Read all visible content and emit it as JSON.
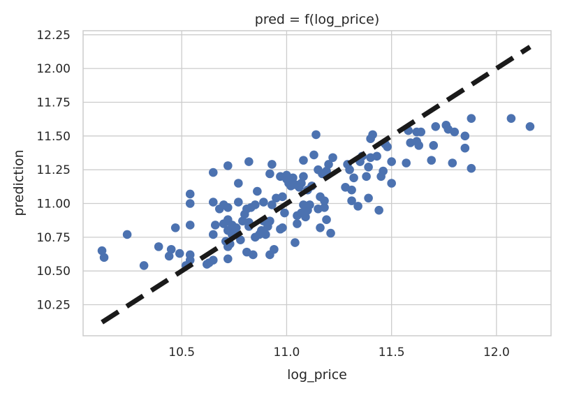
{
  "chart_data": {
    "type": "scatter",
    "title": "pred = f(log_price)",
    "xlabel": "log_price",
    "ylabel": "prediction",
    "xlim": [
      10.03,
      12.26
    ],
    "ylim": [
      10.02,
      12.28
    ],
    "xticks": [
      10.5,
      11.0,
      11.5,
      12.0
    ],
    "xtick_labels": [
      "10.5",
      "11.0",
      "11.5",
      "12.0"
    ],
    "yticks": [
      10.25,
      10.5,
      10.75,
      11.0,
      11.25,
      11.5,
      11.75,
      12.0,
      12.25
    ],
    "ytick_labels": [
      "10.25",
      "10.50",
      "10.75",
      "11.00",
      "11.25",
      "11.50",
      "11.75",
      "12.00",
      "12.25"
    ],
    "grid": true,
    "point_color": "#4c72b0",
    "line_color": "#1a1a1a",
    "reference_line": {
      "x": [
        10.12,
        12.16
      ],
      "y": [
        10.12,
        12.16
      ]
    },
    "points": [
      [
        10.12,
        10.65
      ],
      [
        10.13,
        10.6
      ],
      [
        10.24,
        10.77
      ],
      [
        10.32,
        10.54
      ],
      [
        10.39,
        10.68
      ],
      [
        10.44,
        10.61
      ],
      [
        10.45,
        10.66
      ],
      [
        10.47,
        10.82
      ],
      [
        10.49,
        10.63
      ],
      [
        10.52,
        10.54
      ],
      [
        10.54,
        10.62
      ],
      [
        10.54,
        10.58
      ],
      [
        10.54,
        10.84
      ],
      [
        10.54,
        11.0
      ],
      [
        10.54,
        11.07
      ],
      [
        10.62,
        10.55
      ],
      [
        10.63,
        10.56
      ],
      [
        10.65,
        10.58
      ],
      [
        10.65,
        10.77
      ],
      [
        10.65,
        11.01
      ],
      [
        10.65,
        11.23
      ],
      [
        10.66,
        10.84
      ],
      [
        10.68,
        10.96
      ],
      [
        10.7,
        10.85
      ],
      [
        10.7,
        10.99
      ],
      [
        10.71,
        10.72
      ],
      [
        10.72,
        10.68
      ],
      [
        10.72,
        10.59
      ],
      [
        10.72,
        10.8
      ],
      [
        10.72,
        10.88
      ],
      [
        10.72,
        10.97
      ],
      [
        10.72,
        11.28
      ],
      [
        10.73,
        10.7
      ],
      [
        10.74,
        10.77
      ],
      [
        10.74,
        10.84
      ],
      [
        10.75,
        10.78
      ],
      [
        10.76,
        10.82
      ],
      [
        10.77,
        11.01
      ],
      [
        10.77,
        11.15
      ],
      [
        10.78,
        10.73
      ],
      [
        10.79,
        10.87
      ],
      [
        10.8,
        10.92
      ],
      [
        10.81,
        10.96
      ],
      [
        10.81,
        10.64
      ],
      [
        10.82,
        10.86
      ],
      [
        10.82,
        10.83
      ],
      [
        10.82,
        11.31
      ],
      [
        10.83,
        10.97
      ],
      [
        10.84,
        10.62
      ],
      [
        10.85,
        10.75
      ],
      [
        10.85,
        10.99
      ],
      [
        10.86,
        11.09
      ],
      [
        10.87,
        10.77
      ],
      [
        10.88,
        10.8
      ],
      [
        10.89,
        10.87
      ],
      [
        10.89,
        11.01
      ],
      [
        10.9,
        10.77
      ],
      [
        10.91,
        10.83
      ],
      [
        10.92,
        10.87
      ],
      [
        10.92,
        10.62
      ],
      [
        10.92,
        11.22
      ],
      [
        10.93,
        10.99
      ],
      [
        10.93,
        11.29
      ],
      [
        10.94,
        10.66
      ],
      [
        10.95,
        11.04
      ],
      [
        10.97,
        11.2
      ],
      [
        10.97,
        10.81
      ],
      [
        10.98,
        11.05
      ],
      [
        10.98,
        10.82
      ],
      [
        10.99,
        10.93
      ],
      [
        11.0,
        11.18
      ],
      [
        11.0,
        11.21
      ],
      [
        11.01,
        11.15
      ],
      [
        11.02,
        11.13
      ],
      [
        11.03,
        11.19
      ],
      [
        11.04,
        10.71
      ],
      [
        11.04,
        11.14
      ],
      [
        11.05,
        10.85
      ],
      [
        11.05,
        10.91
      ],
      [
        11.06,
        11.12
      ],
      [
        11.07,
        11.15
      ],
      [
        11.07,
        10.93
      ],
      [
        11.08,
        11.2
      ],
      [
        11.08,
        11.32
      ],
      [
        11.08,
        10.99
      ],
      [
        11.09,
        10.9
      ],
      [
        11.1,
        10.95
      ],
      [
        11.1,
        11.1
      ],
      [
        11.11,
        10.99
      ],
      [
        11.12,
        11.13
      ],
      [
        11.13,
        11.36
      ],
      [
        11.14,
        11.51
      ],
      [
        11.15,
        11.25
      ],
      [
        11.15,
        10.96
      ],
      [
        11.16,
        11.05
      ],
      [
        11.16,
        10.82
      ],
      [
        11.17,
        11.22
      ],
      [
        11.18,
        10.97
      ],
      [
        11.18,
        11.02
      ],
      [
        11.19,
        11.24
      ],
      [
        11.19,
        10.88
      ],
      [
        11.2,
        11.29
      ],
      [
        11.21,
        10.78
      ],
      [
        11.22,
        11.34
      ],
      [
        11.28,
        11.12
      ],
      [
        11.29,
        11.29
      ],
      [
        11.3,
        11.25
      ],
      [
        11.31,
        11.02
      ],
      [
        11.31,
        11.1
      ],
      [
        11.32,
        11.19
      ],
      [
        11.34,
        10.98
      ],
      [
        11.35,
        11.31
      ],
      [
        11.36,
        11.35
      ],
      [
        11.38,
        11.2
      ],
      [
        11.39,
        11.04
      ],
      [
        11.39,
        11.27
      ],
      [
        11.4,
        11.34
      ],
      [
        11.4,
        11.48
      ],
      [
        11.41,
        11.51
      ],
      [
        11.43,
        11.35
      ],
      [
        11.44,
        10.95
      ],
      [
        11.45,
        11.2
      ],
      [
        11.46,
        11.24
      ],
      [
        11.47,
        11.44
      ],
      [
        11.48,
        11.42
      ],
      [
        11.5,
        11.31
      ],
      [
        11.5,
        11.15
      ],
      [
        11.57,
        11.3
      ],
      [
        11.58,
        11.54
      ],
      [
        11.59,
        11.45
      ],
      [
        11.62,
        11.53
      ],
      [
        11.62,
        11.46
      ],
      [
        11.63,
        11.43
      ],
      [
        11.64,
        11.53
      ],
      [
        11.69,
        11.32
      ],
      [
        11.7,
        11.43
      ],
      [
        11.71,
        11.57
      ],
      [
        11.76,
        11.58
      ],
      [
        11.77,
        11.55
      ],
      [
        11.79,
        11.3
      ],
      [
        11.8,
        11.53
      ],
      [
        11.85,
        11.5
      ],
      [
        11.85,
        11.41
      ],
      [
        11.88,
        11.63
      ],
      [
        11.88,
        11.26
      ],
      [
        12.07,
        11.63
      ],
      [
        12.16,
        11.57
      ]
    ]
  }
}
